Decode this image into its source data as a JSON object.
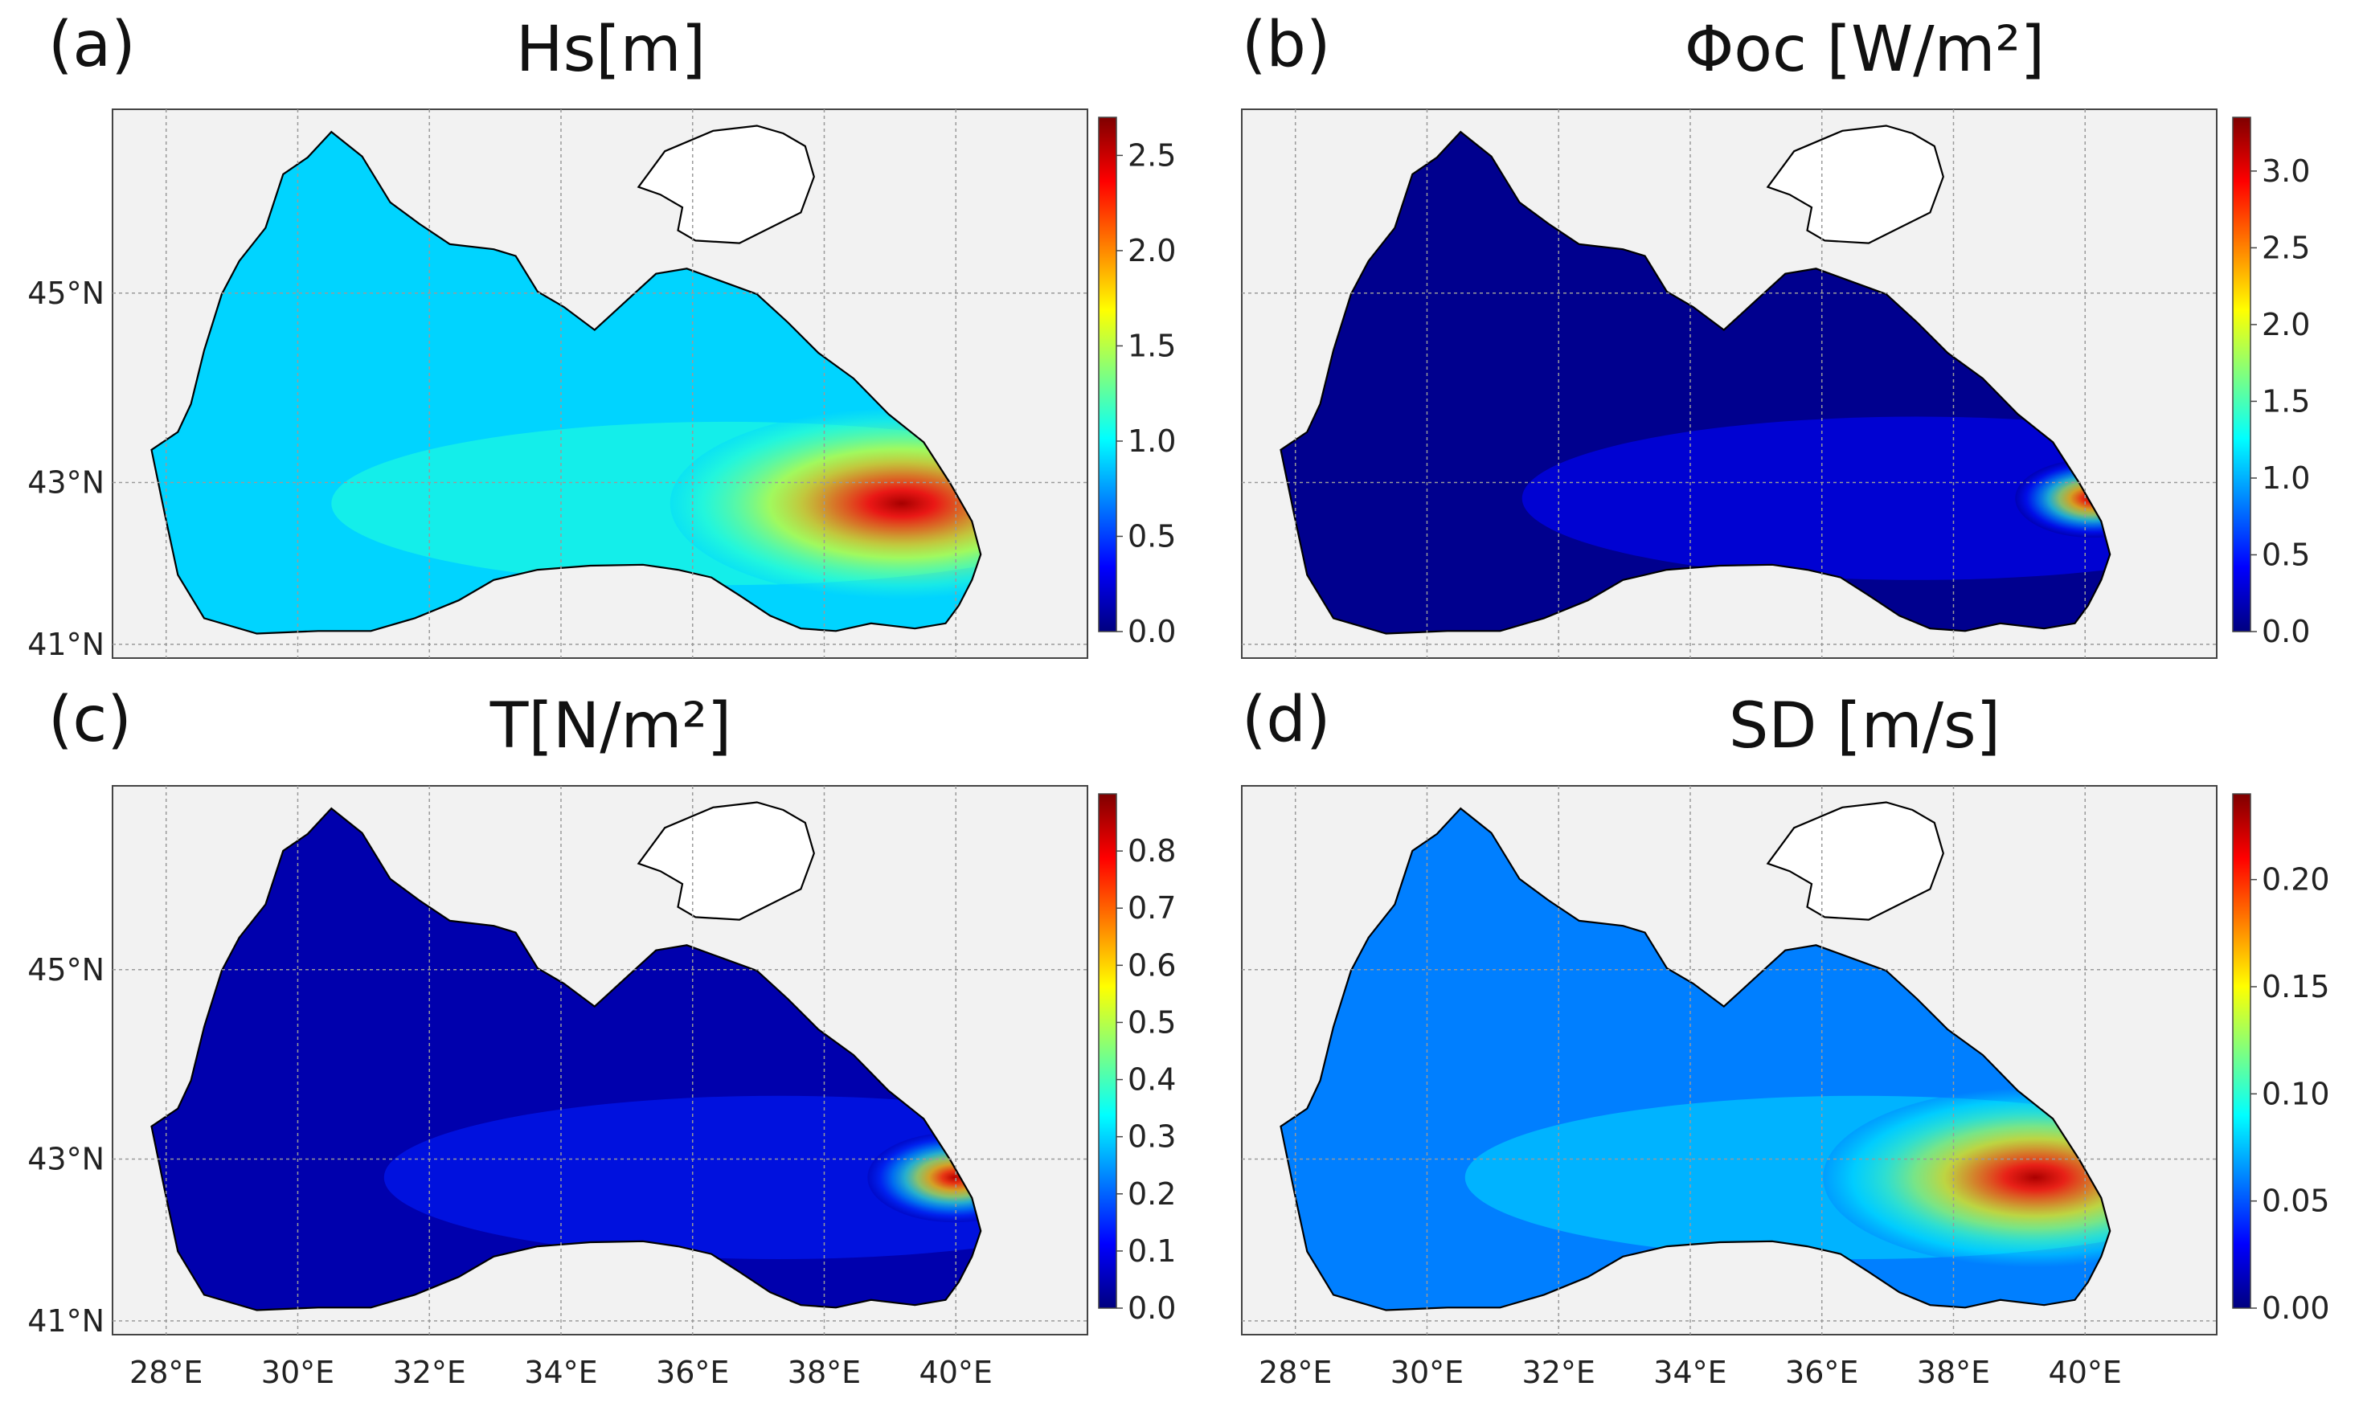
{
  "figure": {
    "panels": [
      {
        "id": "a",
        "label": "(a)",
        "title": "Hs[m]",
        "colorbar": {
          "ticks": [
            "0.0",
            "0.5",
            "1.0",
            "1.5",
            "2.0",
            "2.5"
          ],
          "min": 0,
          "max": 2.7,
          "hotspot_value": 2.6,
          "background_value": 0.9
        }
      },
      {
        "id": "b",
        "label": "(b)",
        "title": "Φoc [W/m²]",
        "colorbar": {
          "ticks": [
            "0.0",
            "0.5",
            "1.0",
            "1.5",
            "2.0",
            "2.5",
            "3.0"
          ],
          "min": 0,
          "max": 3.35,
          "hotspot_value": 3.2,
          "background_value": 0.05
        }
      },
      {
        "id": "c",
        "label": "(c)",
        "title": "T[N/m²]",
        "colorbar": {
          "ticks": [
            "0.0",
            "0.1",
            "0.2",
            "0.3",
            "0.4",
            "0.5",
            "0.6",
            "0.7",
            "0.8"
          ],
          "min": 0,
          "max": 0.9,
          "hotspot_value": 0.85,
          "background_value": 0.04
        }
      },
      {
        "id": "d",
        "label": "(d)",
        "title": "SD [m/s]",
        "colorbar": {
          "ticks": [
            "0.00",
            "0.05",
            "0.10",
            "0.15",
            "0.20"
          ],
          "min": 0,
          "max": 0.24,
          "hotspot_value": 0.23,
          "background_value": 0.06
        }
      }
    ],
    "axes": {
      "lon_labels": [
        "28°E",
        "30°E",
        "32°E",
        "34°E",
        "36°E",
        "38°E",
        "40°E"
      ],
      "lat_labels": [
        "45°N",
        "43°N",
        "41°N"
      ]
    },
    "colors": {
      "sea_background": "#f2f2f2",
      "land": "#ffffff",
      "coast": "#000000",
      "gridline": "#9a9a9a",
      "colormap": [
        "#00007f",
        "#0000ff",
        "#007fff",
        "#00ffff",
        "#7fff7f",
        "#ffff00",
        "#ff7f00",
        "#ff0000",
        "#7f0000"
      ]
    }
  }
}
